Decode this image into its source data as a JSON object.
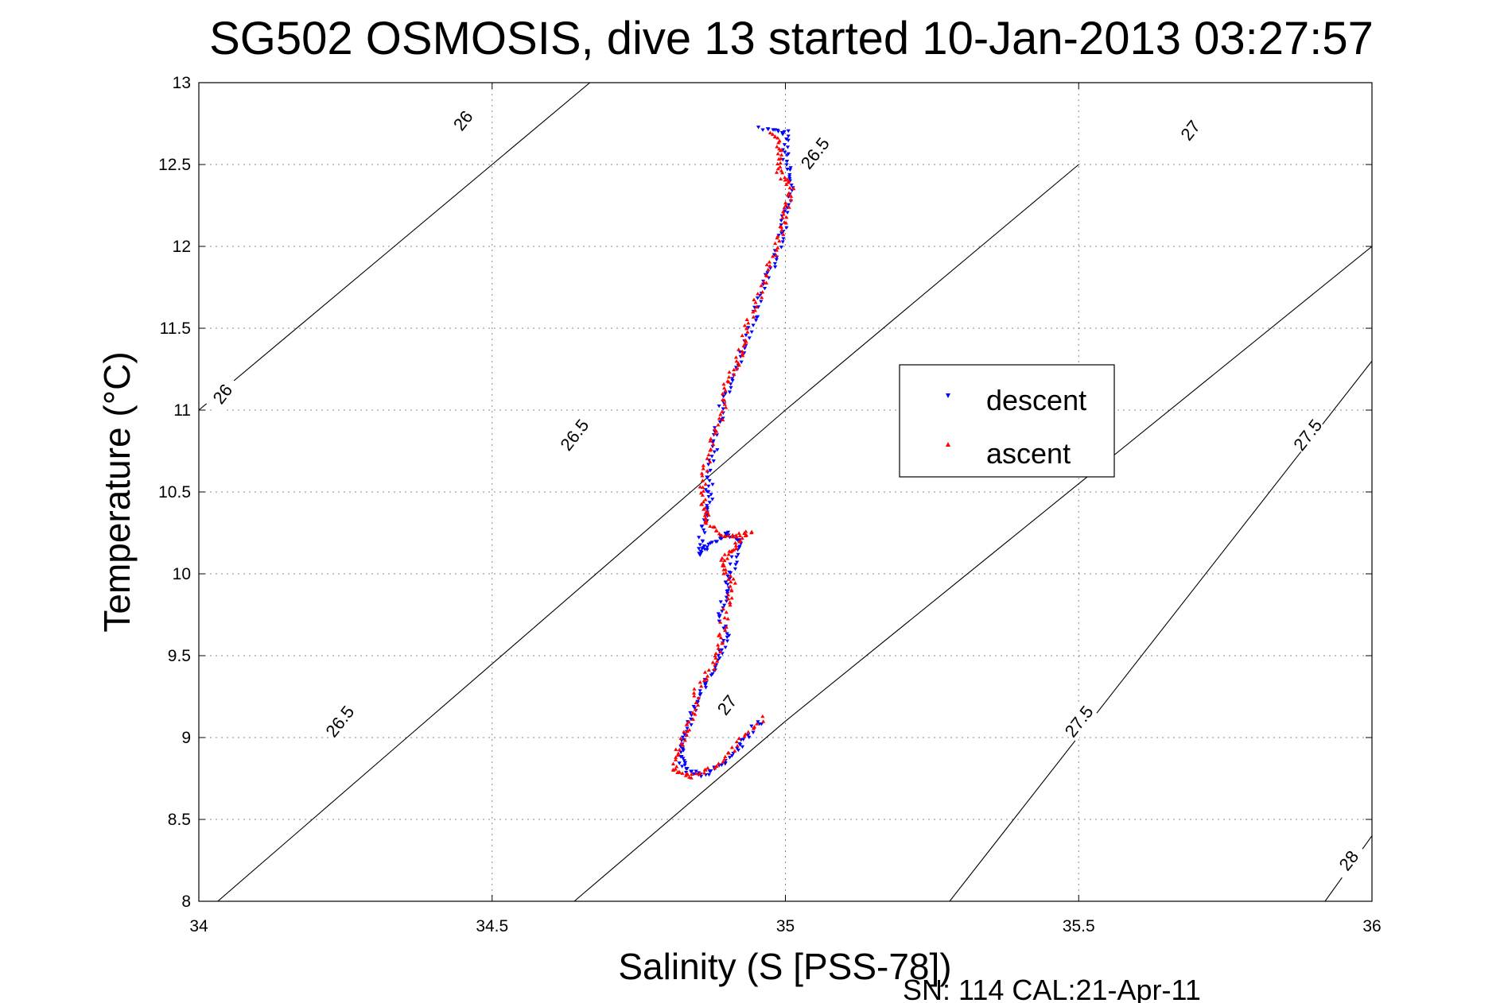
{
  "chart_data": {
    "type": "scatter",
    "title": "SG502 OSMOSIS, dive 13 started 10-Jan-2013 03:27:57",
    "xlabel": "Salinity (S [PSS-78])",
    "ylabel": "Temperature (°C)",
    "xlim": [
      34,
      36
    ],
    "ylim": [
      8,
      13
    ],
    "xticks": [
      "34",
      "34.5",
      "35",
      "35.5",
      "36"
    ],
    "yticks": [
      "8",
      "8.5",
      "9",
      "9.5",
      "10",
      "10.5",
      "11",
      "11.5",
      "12",
      "12.5",
      "13"
    ],
    "grid": true,
    "legend_position": "right",
    "footer": "SN: 114  CAL:21-Apr-11",
    "contours": [
      {
        "label": "26",
        "points": [
          [
            34.0,
            11.0
          ],
          [
            35.0,
            14.0
          ]
        ]
      },
      {
        "label": "26.5",
        "points": [
          [
            34.0,
            7.9
          ],
          [
            35.0,
            11.0
          ],
          [
            35.5,
            12.5
          ]
        ]
      },
      {
        "label": "27",
        "points": [
          [
            34.64,
            8.0
          ],
          [
            35.0,
            9.1
          ],
          [
            36.0,
            12.0
          ]
        ]
      },
      {
        "label": "27.5",
        "points": [
          [
            35.28,
            8.0
          ],
          [
            36.0,
            11.3
          ]
        ]
      },
      {
        "label": "28",
        "points": [
          [
            35.92,
            8.0
          ],
          [
            36.0,
            8.4
          ]
        ]
      }
    ],
    "contour_labels": [
      {
        "text": "26",
        "s": 34.45,
        "t": 12.77
      },
      {
        "text": "26",
        "s": 34.04,
        "t": 11.1
      },
      {
        "text": "26.5",
        "s": 35.05,
        "t": 12.57
      },
      {
        "text": "26.5",
        "s": 34.64,
        "t": 10.85
      },
      {
        "text": "26.5",
        "s": 34.24,
        "t": 9.1
      },
      {
        "text": "27",
        "s": 35.69,
        "t": 12.71
      },
      {
        "text": "27",
        "s": 34.9,
        "t": 9.2
      },
      {
        "text": "27.5",
        "s": 35.89,
        "t": 10.85
      },
      {
        "text": "27.5",
        "s": 35.5,
        "t": 9.1
      },
      {
        "text": "28",
        "s": 35.96,
        "t": 8.25
      }
    ],
    "series": [
      {
        "name": "descent",
        "color": "#0000ff",
        "marker": "triangle-down",
        "path": [
          [
            34.96,
            12.72
          ],
          [
            35.0,
            12.7
          ],
          [
            35.0,
            12.55
          ],
          [
            35.01,
            12.4
          ],
          [
            35.0,
            12.2
          ],
          [
            34.99,
            12.0
          ],
          [
            34.97,
            11.8
          ],
          [
            34.95,
            11.6
          ],
          [
            34.93,
            11.4
          ],
          [
            34.91,
            11.2
          ],
          [
            34.89,
            11.0
          ],
          [
            34.88,
            10.8
          ],
          [
            34.87,
            10.6
          ],
          [
            34.87,
            10.45
          ],
          [
            34.86,
            10.3
          ],
          [
            34.85,
            10.12
          ],
          [
            34.87,
            10.18
          ],
          [
            34.9,
            10.25
          ],
          [
            34.92,
            10.2
          ],
          [
            34.91,
            10.05
          ],
          [
            34.9,
            9.9
          ],
          [
            34.89,
            9.75
          ],
          [
            34.9,
            9.6
          ],
          [
            34.88,
            9.45
          ],
          [
            34.86,
            9.3
          ],
          [
            34.84,
            9.15
          ],
          [
            34.83,
            9.0
          ],
          [
            34.82,
            8.88
          ],
          [
            34.83,
            8.8
          ],
          [
            34.86,
            8.77
          ],
          [
            34.9,
            8.85
          ],
          [
            34.93,
            8.98
          ],
          [
            34.96,
            9.12
          ]
        ]
      },
      {
        "name": "ascent",
        "color": "#ff0000",
        "marker": "triangle-up",
        "path": [
          [
            34.98,
            12.7
          ],
          [
            34.99,
            12.58
          ],
          [
            34.99,
            12.45
          ],
          [
            35.01,
            12.35
          ],
          [
            35.0,
            12.2
          ],
          [
            34.99,
            12.05
          ],
          [
            34.97,
            11.85
          ],
          [
            34.95,
            11.65
          ],
          [
            34.93,
            11.45
          ],
          [
            34.92,
            11.3
          ],
          [
            34.9,
            11.15
          ],
          [
            34.89,
            10.95
          ],
          [
            34.87,
            10.75
          ],
          [
            34.86,
            10.55
          ],
          [
            34.86,
            10.4
          ],
          [
            34.87,
            10.3
          ],
          [
            34.9,
            10.22
          ],
          [
            34.94,
            10.26
          ],
          [
            34.91,
            10.15
          ],
          [
            34.89,
            10.07
          ],
          [
            34.91,
            9.95
          ],
          [
            34.9,
            9.8
          ],
          [
            34.89,
            9.6
          ],
          [
            34.88,
            9.45
          ],
          [
            34.85,
            9.3
          ],
          [
            34.84,
            9.1
          ],
          [
            34.82,
            8.95
          ],
          [
            34.81,
            8.8
          ],
          [
            34.84,
            8.76
          ],
          [
            34.88,
            8.82
          ],
          [
            34.92,
            8.97
          ],
          [
            34.97,
            9.14
          ]
        ]
      }
    ]
  }
}
